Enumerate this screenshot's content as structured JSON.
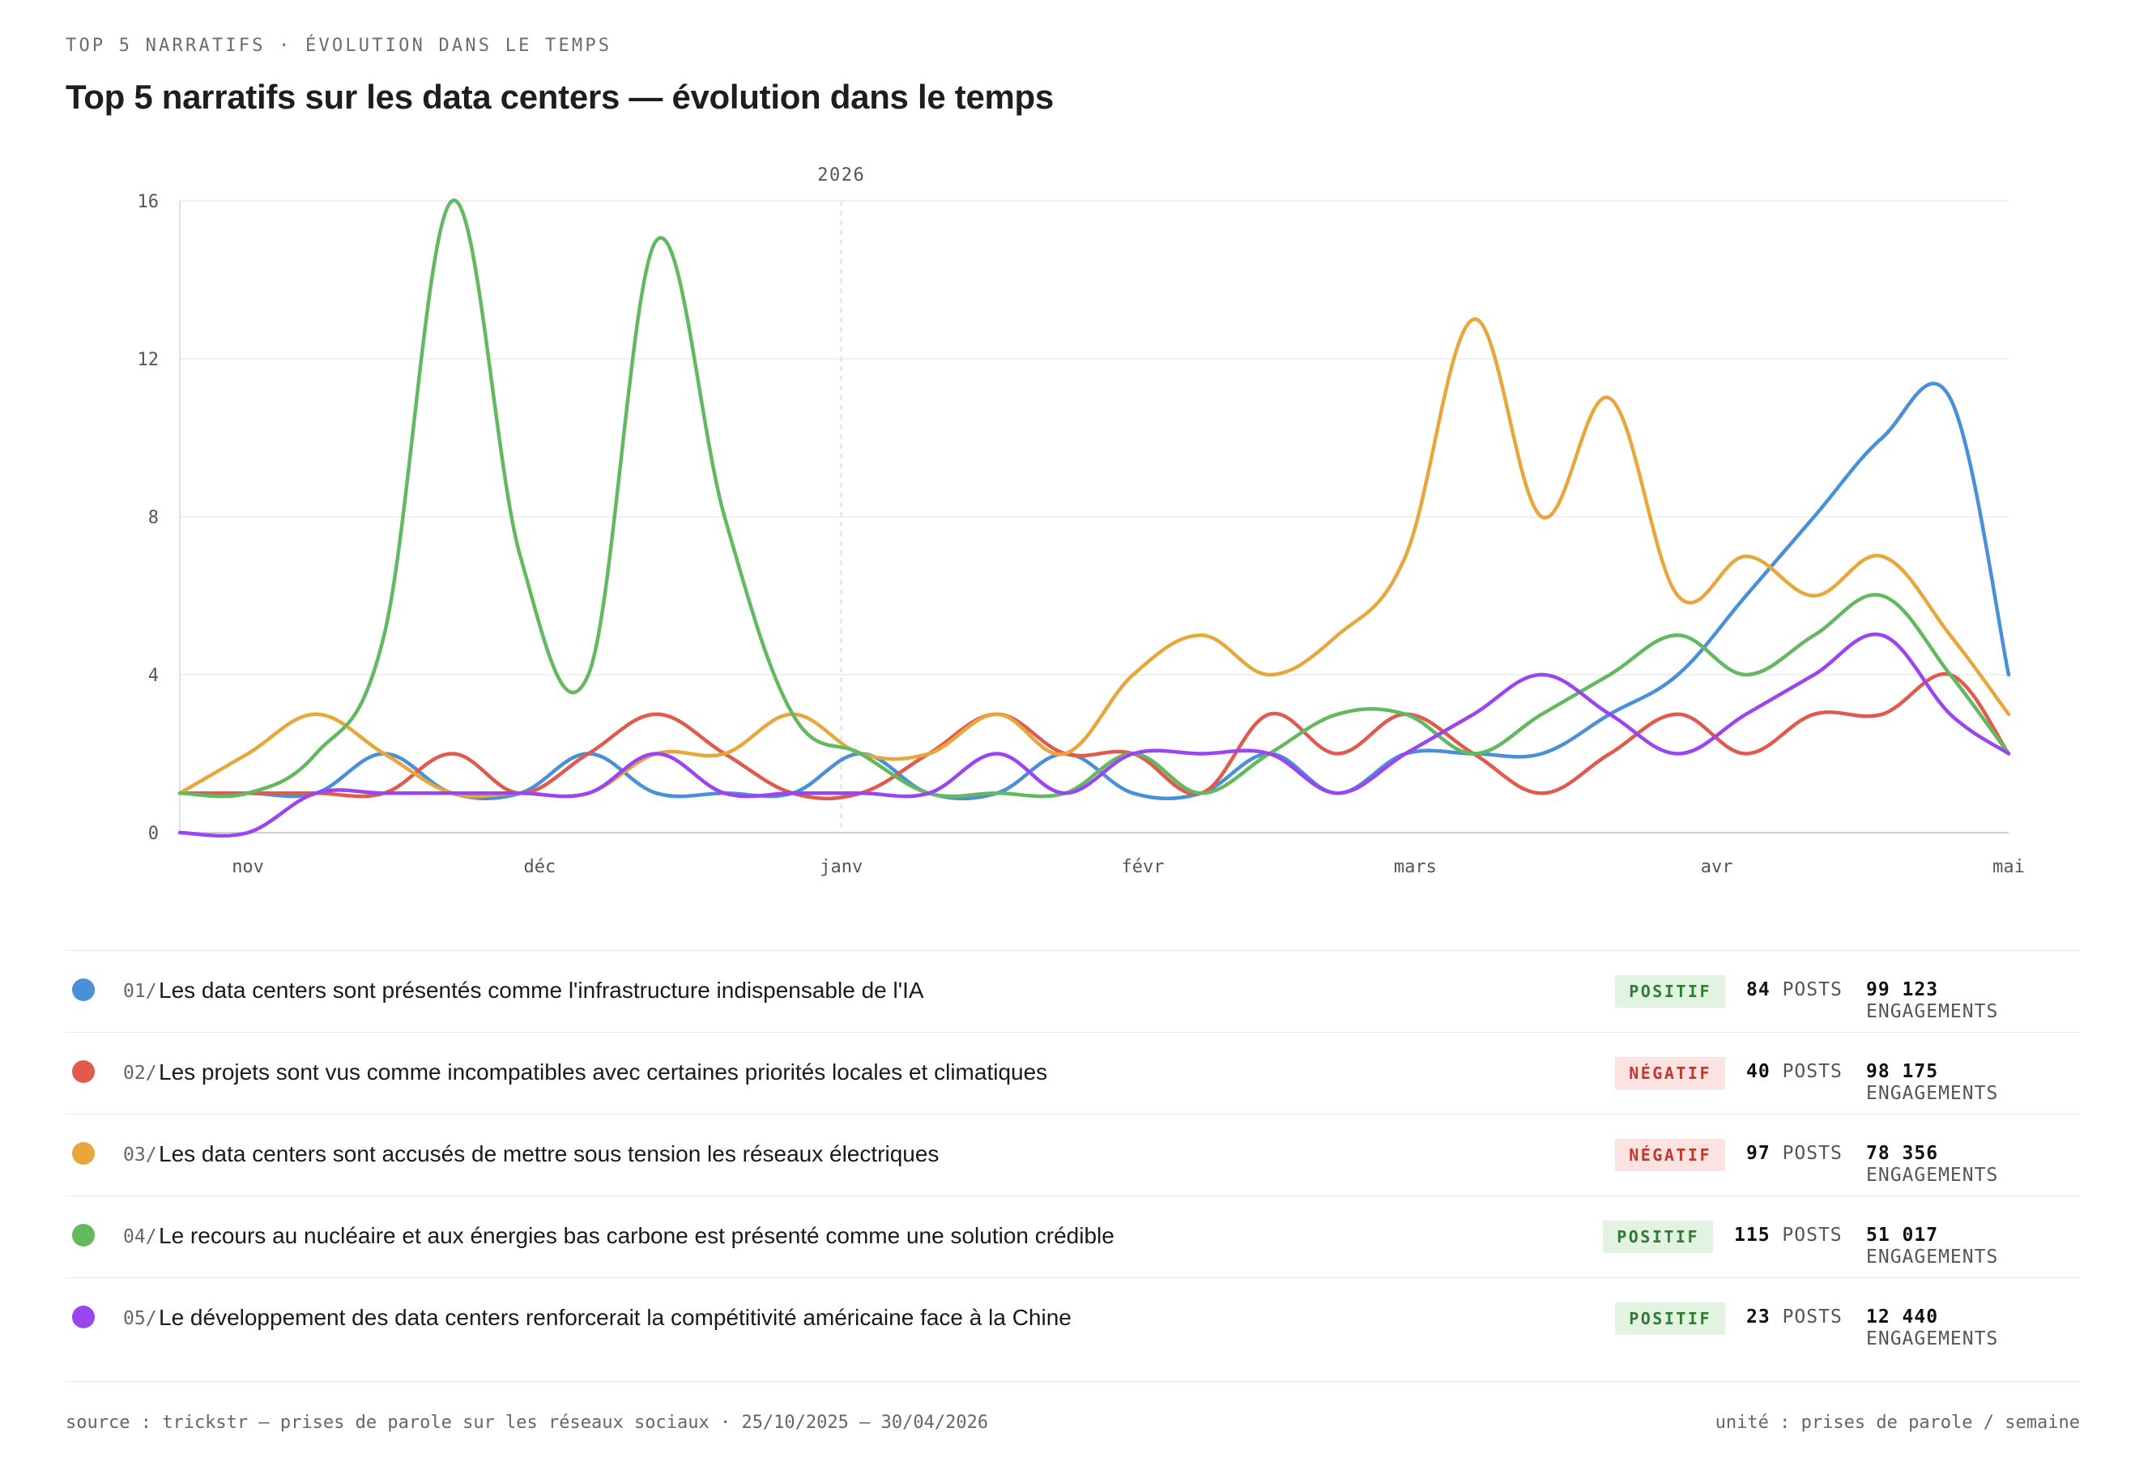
{
  "eyebrow": "TOP 5 NARRATIFS · ÉVOLUTION DANS LE TEMPS",
  "title": "Top 5 narratifs sur les data centers — évolution dans le temps",
  "chart_data": {
    "type": "line",
    "year_marker": "2026",
    "ylim": [
      0,
      16
    ],
    "yticks": [
      "0",
      "4",
      "8",
      "12",
      "16"
    ],
    "x_range": [
      "2025-10-25",
      "2026-05-01"
    ],
    "x_ticks": [
      {
        "label": "nov",
        "date": "2025-11-01"
      },
      {
        "label": "déc",
        "date": "2025-12-01"
      },
      {
        "label": "janv",
        "date": "2026-01-01"
      },
      {
        "label": "févr",
        "date": "2026-02-01"
      },
      {
        "label": "mars",
        "date": "2026-03-01"
      },
      {
        "label": "avr",
        "date": "2026-04-01"
      },
      {
        "label": "mai",
        "date": "2026-05-01"
      }
    ],
    "grid": true,
    "dates": [
      "2025-10-25",
      "2025-11-01",
      "2025-11-08",
      "2025-11-15",
      "2025-11-22",
      "2025-11-29",
      "2025-12-06",
      "2025-12-13",
      "2025-12-20",
      "2025-12-27",
      "2026-01-03",
      "2026-01-10",
      "2026-01-17",
      "2026-01-24",
      "2026-01-31",
      "2026-02-07",
      "2026-02-14",
      "2026-02-21",
      "2026-02-28",
      "2026-03-07",
      "2026-03-14",
      "2026-03-21",
      "2026-03-28",
      "2026-04-04",
      "2026-04-11",
      "2026-04-18",
      "2026-04-25",
      "2026-05-01"
    ],
    "series": [
      {
        "color": "#4a90d9",
        "values": [
          1,
          1,
          1,
          2,
          1,
          1,
          2,
          1,
          1,
          1,
          2,
          1,
          1,
          2,
          1,
          1,
          2,
          1,
          2,
          2,
          2,
          3,
          4,
          6,
          8,
          10,
          11,
          4
        ]
      },
      {
        "color": "#e05a4e",
        "values": [
          1,
          1,
          1,
          1,
          2,
          1,
          2,
          3,
          2,
          1,
          1,
          2,
          3,
          2,
          2,
          1,
          3,
          2,
          3,
          2,
          1,
          2,
          3,
          2,
          3,
          3,
          4,
          2
        ]
      },
      {
        "color": "#e8a73c",
        "values": [
          1,
          2,
          3,
          2,
          1,
          1,
          1,
          2,
          2,
          3,
          2,
          2,
          3,
          2,
          4,
          5,
          4,
          5,
          7,
          13,
          8,
          11,
          6,
          7,
          6,
          7,
          5,
          3
        ]
      },
      {
        "color": "#63b95f",
        "values": [
          1,
          1,
          2,
          5,
          16,
          7,
          4,
          15,
          8,
          3,
          2,
          1,
          1,
          1,
          2,
          1,
          2,
          3,
          3,
          2,
          3,
          4,
          5,
          4,
          5,
          6,
          4,
          2
        ]
      },
      {
        "color": "#9b45f0",
        "values": [
          0,
          0,
          1,
          1,
          1,
          1,
          1,
          2,
          1,
          1,
          1,
          1,
          2,
          1,
          2,
          2,
          2,
          1,
          2,
          3,
          4,
          3,
          2,
          3,
          4,
          5,
          3,
          2
        ]
      }
    ]
  },
  "legend": [
    {
      "index": "01/",
      "label": "Les data centers sont présentés comme l'infrastructure indispensable de l'IA",
      "color": "#4a90d9",
      "sentiment": "POSITIF",
      "tone": "pos",
      "posts": "84",
      "posts_unit": "POSTS",
      "engagements": "99 123",
      "engagements_unit": "ENGAGEMENTS"
    },
    {
      "index": "02/",
      "label": "Les projets sont vus comme incompatibles avec certaines priorités locales et climatiques",
      "color": "#e05a4e",
      "sentiment": "NÉGATIF",
      "tone": "neg",
      "posts": "40",
      "posts_unit": "POSTS",
      "engagements": "98 175",
      "engagements_unit": "ENGAGEMENTS"
    },
    {
      "index": "03/",
      "label": "Les data centers sont accusés de mettre sous tension les réseaux électriques",
      "color": "#e8a73c",
      "sentiment": "NÉGATIF",
      "tone": "neg",
      "posts": "97",
      "posts_unit": "POSTS",
      "engagements": "78 356",
      "engagements_unit": "ENGAGEMENTS"
    },
    {
      "index": "04/",
      "label": "Le recours au nucléaire et aux énergies bas carbone est présenté comme une solution crédible",
      "color": "#63b95f",
      "sentiment": "POSITIF",
      "tone": "pos",
      "posts": "115",
      "posts_unit": "POSTS",
      "engagements": "51 017",
      "engagements_unit": "ENGAGEMENTS"
    },
    {
      "index": "05/",
      "label": "Le développement des data centers renforcerait la compétitivité américaine face à la Chine",
      "color": "#9b45f0",
      "sentiment": "POSITIF",
      "tone": "pos",
      "posts": "23",
      "posts_unit": "POSTS",
      "engagements": "12 440",
      "engagements_unit": "ENGAGEMENTS"
    }
  ],
  "footer": {
    "source": "source : trickstr — prises de parole sur les réseaux sociaux · 25/10/2025 — 30/04/2026",
    "unit": "unité : prises de parole / semaine"
  }
}
